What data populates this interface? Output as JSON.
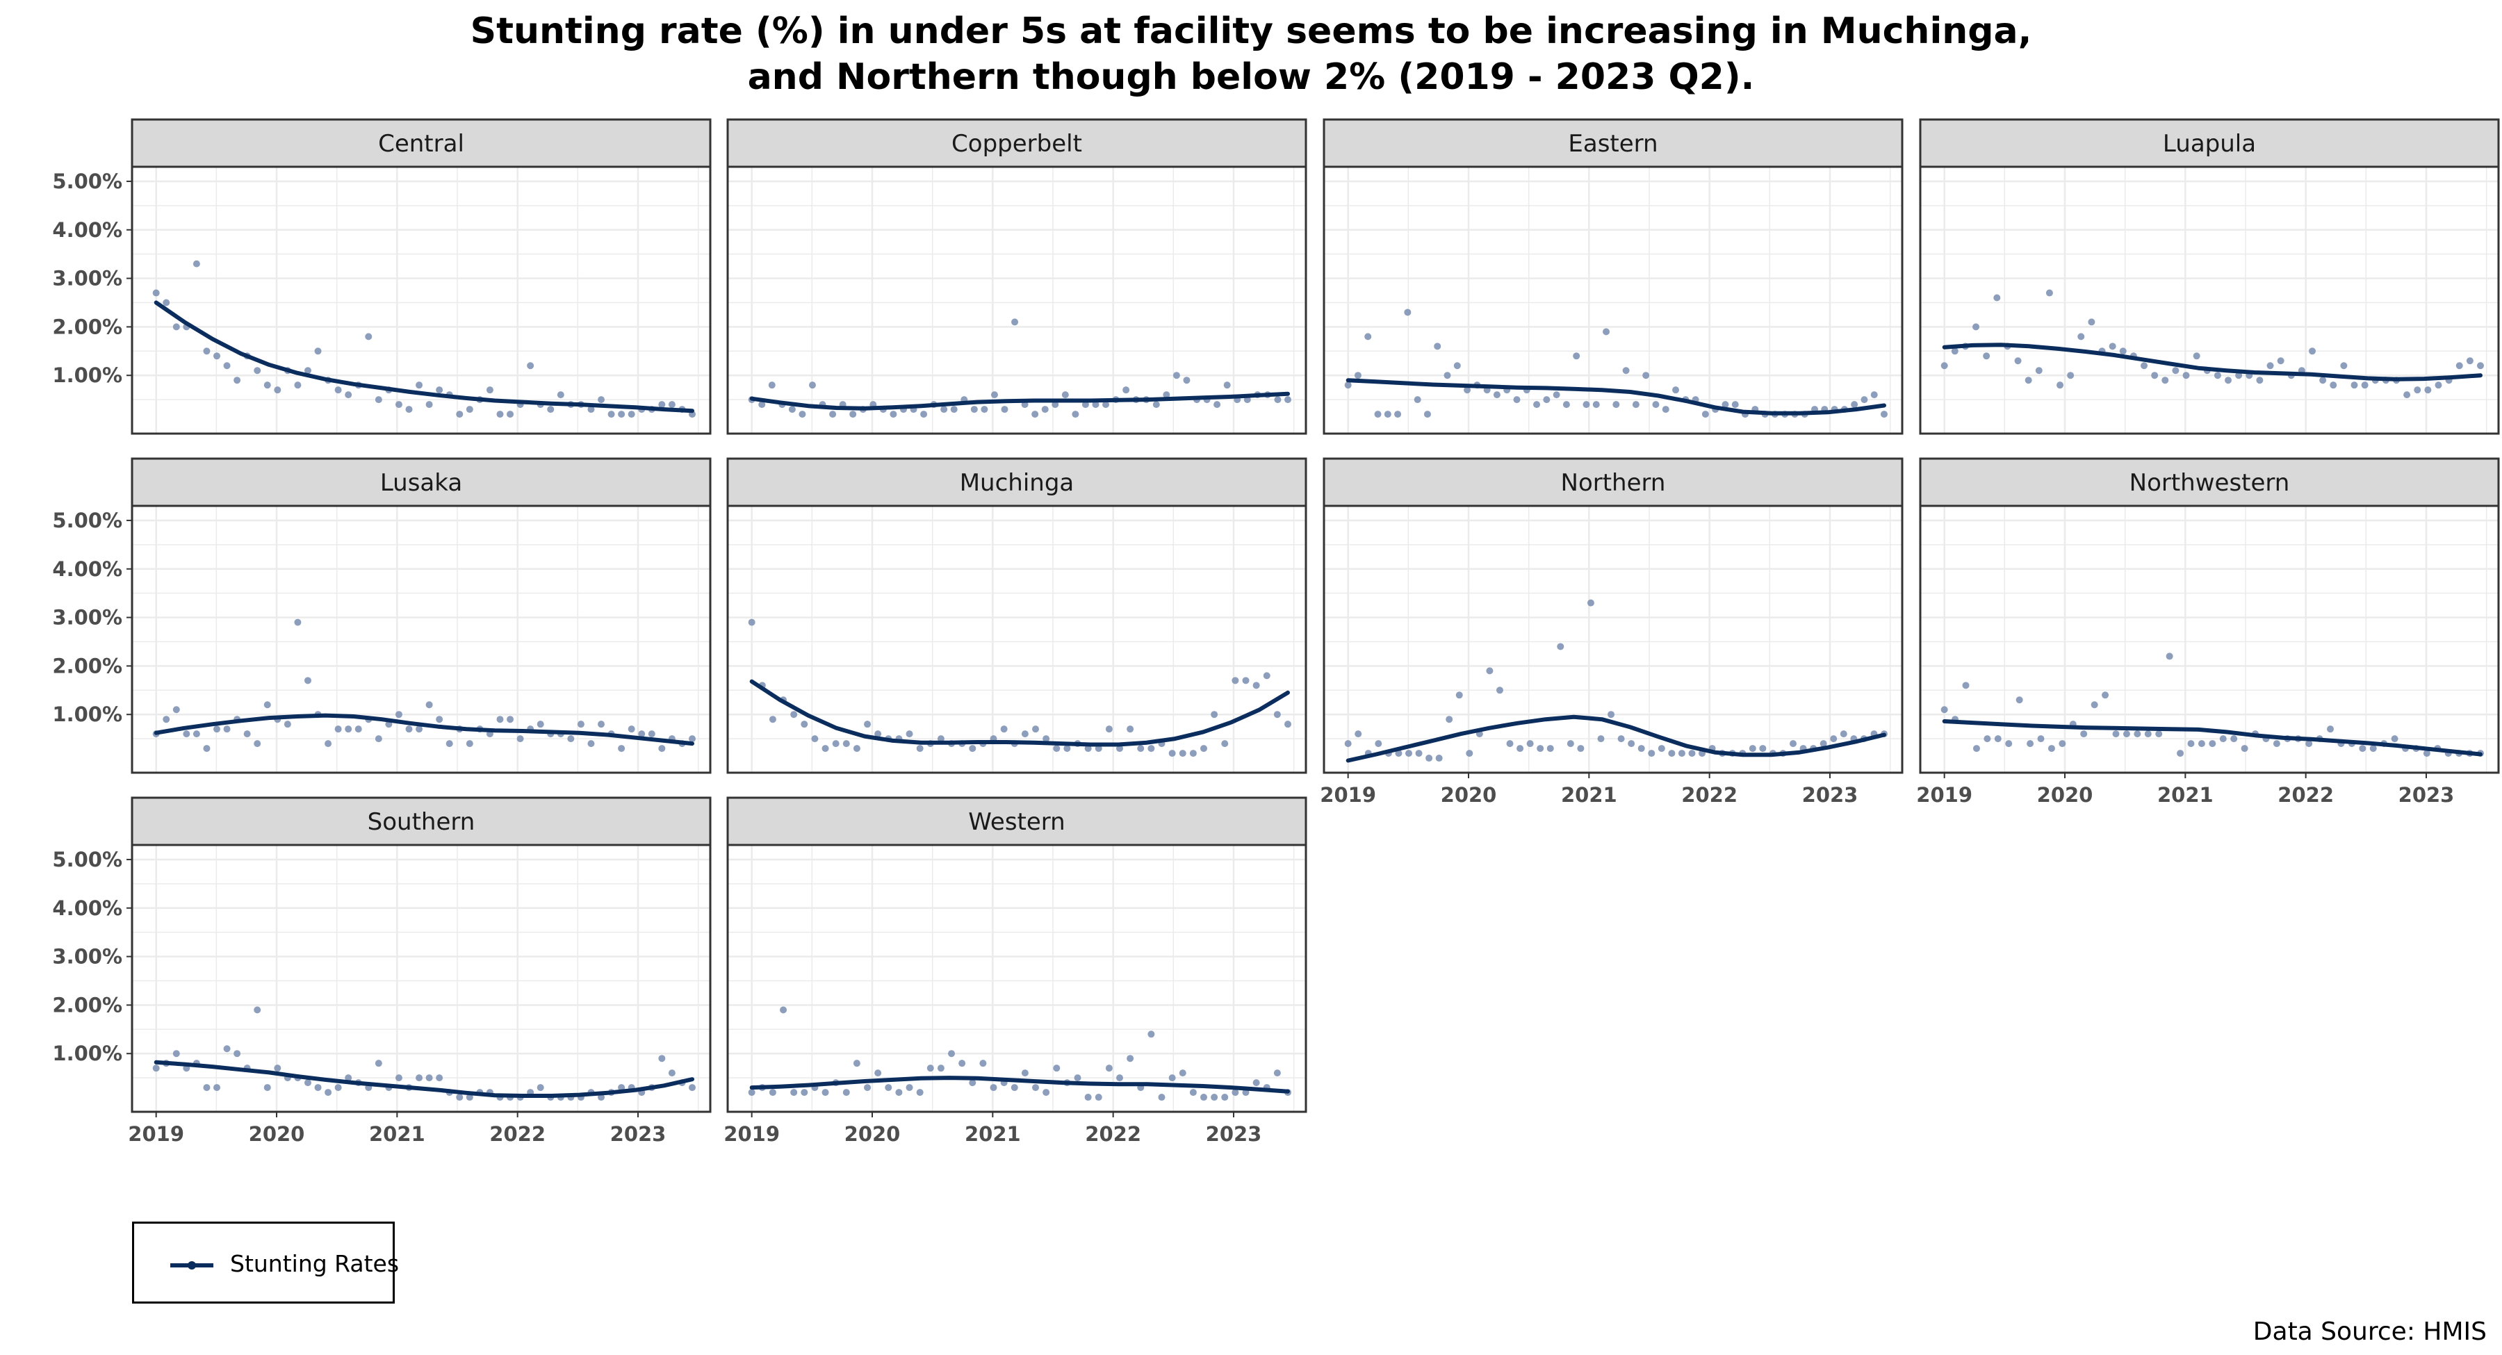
{
  "title": {
    "line1": "Stunting rate (%) in under 5s at facility seems to be increasing in Muchinga,",
    "line2": "and Northern though below 2% (2019 - 2023 Q2)."
  },
  "legend": {
    "label": "Stunting Rates",
    "color": "#0a2d5e"
  },
  "source": "Data Source: HMIS",
  "colors": {
    "trend": "#0a2d5e",
    "points": "#7f93b5",
    "strip_bg": "#d9d9d9",
    "grid": "#ebebeb"
  },
  "chart_data": {
    "type": "scatter",
    "x_unit": "year",
    "xlim": [
      2018.8,
      2023.6
    ],
    "ylim": [
      -0.2,
      5.3
    ],
    "y_ticks": [
      1,
      2,
      3,
      4,
      5
    ],
    "y_tick_labels": [
      "1.00%",
      "2.00%",
      "3.00%",
      "4.00%",
      "5.00%"
    ],
    "x_ticks": [
      2019,
      2020,
      2021,
      2022,
      2023
    ],
    "x_tick_labels": [
      "2019",
      "2020",
      "2021",
      "2022",
      "2023"
    ],
    "grid": true,
    "legend_position": "bottom-left",
    "series_name": "Stunting Rates",
    "panels": [
      {
        "name": "Central",
        "points": [
          2.7,
          2.5,
          2.0,
          2.0,
          3.3,
          1.5,
          1.4,
          1.2,
          0.9,
          1.4,
          1.1,
          0.8,
          0.7,
          1.1,
          0.8,
          1.1,
          1.5,
          0.9,
          0.7,
          0.6,
          0.8,
          1.8,
          0.5,
          0.7,
          0.4,
          0.3,
          0.8,
          0.4,
          0.7,
          0.6,
          0.2,
          0.3,
          0.5,
          0.7,
          0.2,
          0.2,
          0.4,
          1.2,
          0.4,
          0.3,
          0.6,
          0.4,
          0.4,
          0.3,
          0.5,
          0.2,
          0.2,
          0.2,
          0.3,
          0.3,
          0.4,
          0.4,
          0.3,
          0.2
        ],
        "trend": [
          2.5,
          2.1,
          1.75,
          1.45,
          1.22,
          1.05,
          0.92,
          0.82,
          0.74,
          0.66,
          0.59,
          0.53,
          0.48,
          0.45,
          0.42,
          0.4,
          0.37,
          0.34,
          0.3,
          0.27
        ]
      },
      {
        "name": "Copperbelt",
        "points": [
          0.5,
          0.4,
          0.8,
          0.4,
          0.3,
          0.2,
          0.8,
          0.4,
          0.2,
          0.4,
          0.2,
          0.3,
          0.4,
          0.3,
          0.2,
          0.3,
          0.3,
          0.2,
          0.4,
          0.3,
          0.3,
          0.5,
          0.3,
          0.3,
          0.6,
          0.3,
          2.1,
          0.4,
          0.2,
          0.3,
          0.4,
          0.6,
          0.2,
          0.4,
          0.4,
          0.4,
          0.5,
          0.7,
          0.5,
          0.5,
          0.4,
          0.6,
          1.0,
          0.9,
          0.5,
          0.5,
          0.4,
          0.8,
          0.5,
          0.5,
          0.6,
          0.6,
          0.5,
          0.5
        ],
        "trend": [
          0.52,
          0.44,
          0.37,
          0.33,
          0.32,
          0.34,
          0.37,
          0.41,
          0.45,
          0.47,
          0.48,
          0.48,
          0.48,
          0.49,
          0.5,
          0.52,
          0.54,
          0.56,
          0.59,
          0.62
        ]
      },
      {
        "name": "Eastern",
        "points": [
          0.8,
          1.0,
          1.8,
          0.2,
          0.2,
          0.2,
          2.3,
          0.5,
          0.2,
          1.6,
          1.0,
          1.2,
          0.7,
          0.8,
          0.7,
          0.6,
          0.7,
          0.5,
          0.7,
          0.4,
          0.5,
          0.6,
          0.4,
          1.4,
          0.4,
          0.4,
          1.9,
          0.4,
          1.1,
          0.4,
          1.0,
          0.4,
          0.3,
          0.7,
          0.5,
          0.5,
          0.2,
          0.3,
          0.4,
          0.4,
          0.2,
          0.3,
          0.2,
          0.2,
          0.2,
          0.2,
          0.2,
          0.3,
          0.3,
          0.3,
          0.3,
          0.4,
          0.5,
          0.6,
          0.2
        ],
        "trend": [
          0.9,
          0.87,
          0.84,
          0.81,
          0.79,
          0.77,
          0.75,
          0.74,
          0.72,
          0.7,
          0.66,
          0.58,
          0.47,
          0.34,
          0.25,
          0.22,
          0.22,
          0.24,
          0.3,
          0.38
        ]
      },
      {
        "name": "Luapula",
        "points": [
          1.2,
          1.5,
          1.6,
          2.0,
          1.4,
          2.6,
          1.6,
          1.3,
          0.9,
          1.1,
          2.7,
          0.8,
          1.0,
          1.8,
          2.1,
          1.5,
          1.6,
          1.5,
          1.4,
          1.2,
          1.0,
          0.9,
          1.1,
          1.0,
          1.4,
          1.1,
          1.0,
          0.9,
          1.0,
          1.0,
          0.9,
          1.2,
          1.3,
          1.0,
          1.1,
          1.5,
          0.9,
          0.8,
          1.2,
          0.8,
          0.8,
          0.9,
          0.9,
          0.9,
          0.6,
          0.7,
          0.7,
          0.8,
          0.9,
          1.2,
          1.3,
          1.2
        ],
        "trend": [
          1.58,
          1.62,
          1.63,
          1.6,
          1.55,
          1.49,
          1.42,
          1.33,
          1.24,
          1.15,
          1.1,
          1.06,
          1.04,
          1.02,
          0.98,
          0.94,
          0.92,
          0.93,
          0.96,
          1.0
        ]
      },
      {
        "name": "Lusaka",
        "points": [
          0.6,
          0.9,
          1.1,
          0.6,
          0.6,
          0.3,
          0.7,
          0.7,
          0.9,
          0.6,
          0.4,
          1.2,
          0.9,
          0.8,
          2.9,
          1.7,
          1.0,
          0.4,
          0.7,
          0.7,
          0.7,
          0.9,
          0.5,
          0.8,
          1.0,
          0.7,
          0.7,
          1.2,
          0.9,
          0.4,
          0.7,
          0.4,
          0.7,
          0.6,
          0.9,
          0.9,
          0.5,
          0.7,
          0.8,
          0.6,
          0.6,
          0.5,
          0.8,
          0.4,
          0.8,
          0.6,
          0.3,
          0.7,
          0.6,
          0.6,
          0.3,
          0.5,
          0.4,
          0.5
        ],
        "trend": [
          0.62,
          0.72,
          0.8,
          0.87,
          0.93,
          0.96,
          0.98,
          0.96,
          0.9,
          0.82,
          0.75,
          0.7,
          0.67,
          0.66,
          0.64,
          0.62,
          0.58,
          0.52,
          0.46,
          0.4
        ]
      },
      {
        "name": "Muchinga",
        "points": [
          2.9,
          1.6,
          0.9,
          1.3,
          1.0,
          0.8,
          0.5,
          0.3,
          0.4,
          0.4,
          0.3,
          0.8,
          0.6,
          0.5,
          0.5,
          0.6,
          0.3,
          0.4,
          0.5,
          0.4,
          0.4,
          0.3,
          0.4,
          0.5,
          0.7,
          0.4,
          0.6,
          0.7,
          0.5,
          0.3,
          0.3,
          0.4,
          0.3,
          0.3,
          0.7,
          0.3,
          0.7,
          0.3,
          0.3,
          0.4,
          0.2,
          0.2,
          0.2,
          0.3,
          1.0,
          0.4,
          1.7,
          1.7,
          1.6,
          1.8,
          1.0,
          0.8
        ],
        "trend": [
          1.68,
          1.3,
          0.98,
          0.72,
          0.55,
          0.46,
          0.42,
          0.42,
          0.43,
          0.43,
          0.42,
          0.4,
          0.38,
          0.38,
          0.42,
          0.5,
          0.64,
          0.84,
          1.1,
          1.45
        ]
      },
      {
        "name": "Northern",
        "points": [
          0.4,
          0.6,
          0.2,
          0.4,
          0.2,
          0.2,
          0.2,
          0.2,
          0.1,
          0.1,
          0.9,
          1.4,
          0.2,
          0.6,
          1.9,
          1.5,
          0.4,
          0.3,
          0.4,
          0.3,
          0.3,
          2.4,
          0.4,
          0.3,
          3.3,
          0.5,
          1.0,
          0.5,
          0.4,
          0.3,
          0.2,
          0.3,
          0.2,
          0.2,
          0.2,
          0.2,
          0.3,
          0.2,
          0.2,
          0.2,
          0.3,
          0.3,
          0.2,
          0.2,
          0.4,
          0.3,
          0.3,
          0.4,
          0.5,
          0.6,
          0.5,
          0.5,
          0.6,
          0.6
        ],
        "trend": [
          0.05,
          0.18,
          0.32,
          0.46,
          0.6,
          0.72,
          0.82,
          0.9,
          0.95,
          0.9,
          0.74,
          0.54,
          0.35,
          0.22,
          0.17,
          0.17,
          0.22,
          0.32,
          0.44,
          0.58
        ]
      },
      {
        "name": "Northwestern",
        "points": [
          1.1,
          0.9,
          1.6,
          0.3,
          0.5,
          0.5,
          0.4,
          1.3,
          0.4,
          0.5,
          0.3,
          0.4,
          0.8,
          0.6,
          1.2,
          1.4,
          0.6,
          0.6,
          0.6,
          0.6,
          0.6,
          2.2,
          0.2,
          0.4,
          0.4,
          0.4,
          0.5,
          0.5,
          0.3,
          0.6,
          0.5,
          0.4,
          0.5,
          0.5,
          0.4,
          0.5,
          0.7,
          0.4,
          0.4,
          0.3,
          0.3,
          0.4,
          0.5,
          0.3,
          0.3,
          0.2,
          0.3,
          0.2,
          0.2,
          0.2,
          0.2
        ],
        "trend": [
          0.86,
          0.83,
          0.8,
          0.77,
          0.75,
          0.73,
          0.72,
          0.71,
          0.7,
          0.69,
          0.64,
          0.57,
          0.52,
          0.49,
          0.45,
          0.41,
          0.36,
          0.3,
          0.24,
          0.18
        ]
      },
      {
        "name": "Southern",
        "points": [
          0.7,
          0.8,
          1.0,
          0.7,
          0.8,
          0.3,
          0.3,
          1.1,
          1.0,
          0.7,
          1.9,
          0.3,
          0.7,
          0.5,
          0.5,
          0.4,
          0.3,
          0.2,
          0.3,
          0.5,
          0.4,
          0.3,
          0.8,
          0.3,
          0.5,
          0.3,
          0.5,
          0.5,
          0.5,
          0.2,
          0.1,
          0.1,
          0.2,
          0.2,
          0.1,
          0.1,
          0.1,
          0.2,
          0.3,
          0.1,
          0.1,
          0.1,
          0.1,
          0.2,
          0.1,
          0.2,
          0.3,
          0.3,
          0.2,
          0.3,
          0.9,
          0.6,
          0.4,
          0.3
        ],
        "trend": [
          0.82,
          0.78,
          0.73,
          0.67,
          0.61,
          0.53,
          0.46,
          0.4,
          0.35,
          0.3,
          0.25,
          0.19,
          0.14,
          0.13,
          0.13,
          0.15,
          0.19,
          0.25,
          0.34,
          0.47
        ]
      },
      {
        "name": "Western",
        "points": [
          0.2,
          0.3,
          0.2,
          1.9,
          0.2,
          0.2,
          0.3,
          0.2,
          0.4,
          0.2,
          0.8,
          0.3,
          0.6,
          0.3,
          0.2,
          0.3,
          0.2,
          0.7,
          0.7,
          1.0,
          0.8,
          0.4,
          0.8,
          0.3,
          0.4,
          0.3,
          0.6,
          0.3,
          0.2,
          0.7,
          0.4,
          0.5,
          0.1,
          0.1,
          0.7,
          0.5,
          0.9,
          0.3,
          1.4,
          0.1,
          0.5,
          0.6,
          0.2,
          0.1,
          0.1,
          0.1,
          0.2,
          0.2,
          0.4,
          0.3,
          0.6,
          0.2
        ],
        "trend": [
          0.3,
          0.32,
          0.35,
          0.39,
          0.43,
          0.46,
          0.49,
          0.5,
          0.49,
          0.46,
          0.43,
          0.4,
          0.38,
          0.37,
          0.37,
          0.35,
          0.33,
          0.3,
          0.26,
          0.22
        ]
      }
    ]
  }
}
